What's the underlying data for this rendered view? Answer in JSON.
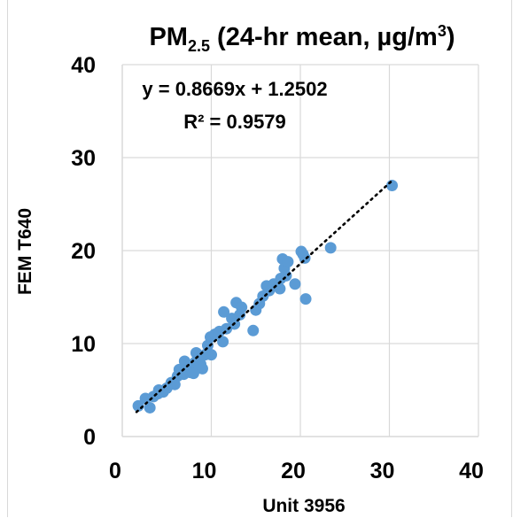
{
  "chart_data": {
    "type": "scatter",
    "title": {
      "base": "PM",
      "subscript": "2.5",
      "rest": " (24-hr mean, µg/m",
      "superscript": "3",
      "close": ")"
    },
    "xlabel": "Unit 3956",
    "ylabel": "FEM T640",
    "xlim": [
      0,
      40
    ],
    "ylim": [
      0,
      40
    ],
    "xticks": [
      "0",
      "10",
      "20",
      "30",
      "40"
    ],
    "yticks": [
      "0",
      "10",
      "20",
      "30",
      "40"
    ],
    "grid": true,
    "point_color": "#5b9bd5",
    "trendline": {
      "slope": 0.8669,
      "intercept": 1.2502,
      "x_range": [
        1.6,
        30.3
      ],
      "style": "dotted",
      "color": "#000000"
    },
    "equation_text": "y = 0.8669x + 1.2502",
    "r2_text": "R² = 0.9579",
    "points": [
      [
        1.8,
        3.3
      ],
      [
        2.6,
        4.1
      ],
      [
        3.1,
        3.1
      ],
      [
        3.5,
        4.3
      ],
      [
        4.0,
        4.6
      ],
      [
        4.1,
        5.0
      ],
      [
        4.6,
        4.8
      ],
      [
        5.0,
        5.2
      ],
      [
        5.5,
        5.8
      ],
      [
        5.9,
        5.6
      ],
      [
        6.2,
        6.5
      ],
      [
        6.4,
        7.2
      ],
      [
        6.9,
        6.7
      ],
      [
        7.0,
        8.1
      ],
      [
        7.3,
        7.6
      ],
      [
        7.6,
        6.9
      ],
      [
        7.8,
        7.3
      ],
      [
        8.0,
        6.8
      ],
      [
        8.2,
        8.0
      ],
      [
        8.3,
        9.0
      ],
      [
        8.6,
        8.5
      ],
      [
        8.8,
        7.8
      ],
      [
        9.0,
        7.3
      ],
      [
        9.3,
        8.8
      ],
      [
        9.6,
        9.8
      ],
      [
        9.9,
        10.7
      ],
      [
        10.0,
        8.8
      ],
      [
        10.4,
        11.0
      ],
      [
        10.9,
        11.3
      ],
      [
        11.3,
        10.2
      ],
      [
        11.4,
        13.4
      ],
      [
        11.7,
        11.6
      ],
      [
        12.3,
        12.7
      ],
      [
        12.6,
        12.1
      ],
      [
        12.8,
        14.4
      ],
      [
        13.2,
        13.1
      ],
      [
        13.4,
        13.9
      ],
      [
        14.7,
        11.4
      ],
      [
        15.0,
        13.6
      ],
      [
        15.4,
        14.3
      ],
      [
        15.8,
        15.1
      ],
      [
        16.2,
        16.2
      ],
      [
        16.5,
        15.7
      ],
      [
        17.0,
        16.4
      ],
      [
        17.7,
        15.9
      ],
      [
        17.8,
        17.0
      ],
      [
        18.0,
        19.1
      ],
      [
        18.2,
        18.1
      ],
      [
        18.4,
        17.3
      ],
      [
        18.6,
        18.8
      ],
      [
        19.4,
        16.4
      ],
      [
        20.1,
        19.9
      ],
      [
        20.3,
        19.6
      ],
      [
        20.5,
        19.2
      ],
      [
        20.6,
        14.8
      ],
      [
        23.4,
        20.3
      ],
      [
        30.3,
        27.0
      ]
    ]
  }
}
